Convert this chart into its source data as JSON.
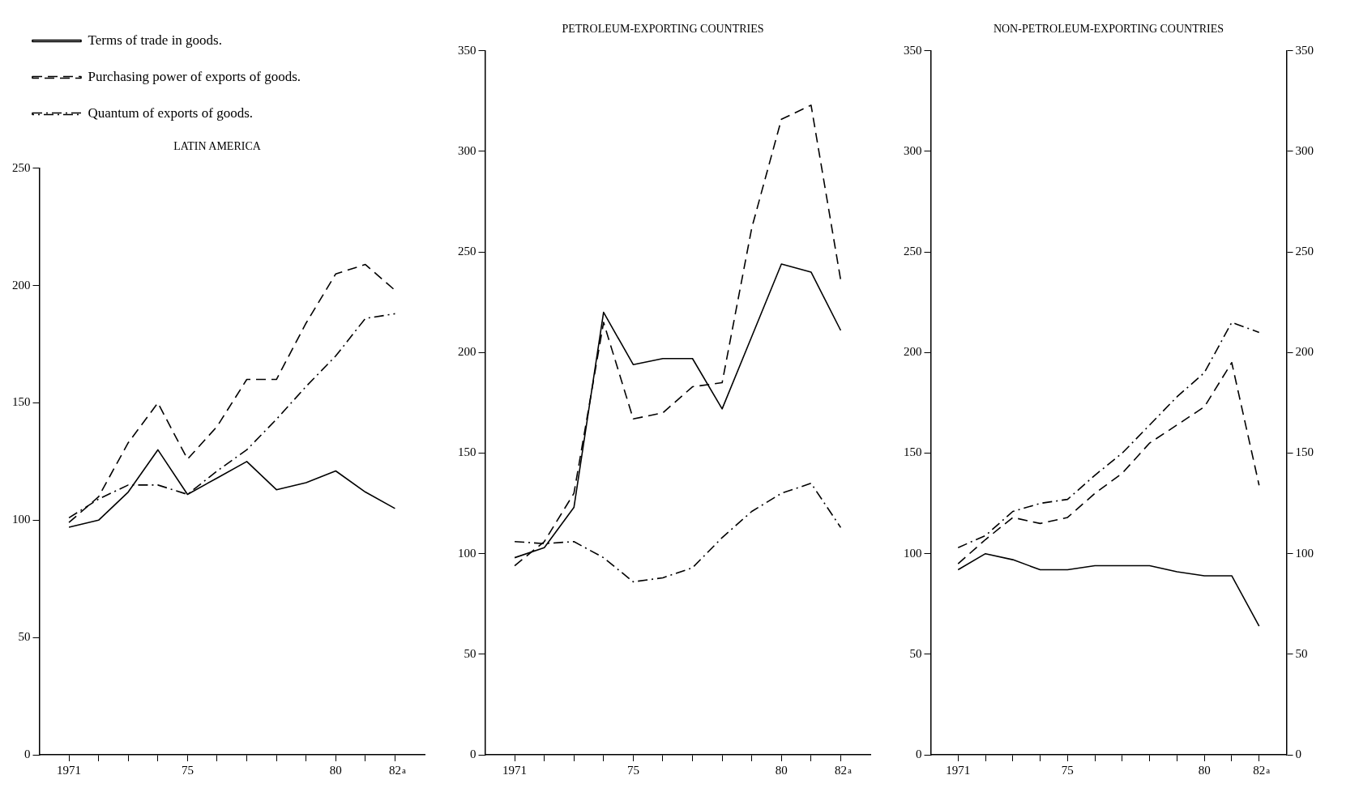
{
  "chart_data": [
    {
      "type": "line",
      "title": "LATIN AMERICA",
      "x": [
        1971,
        1972,
        1973,
        1974,
        1975,
        1976,
        1977,
        1978,
        1979,
        1980,
        1981,
        1982
      ],
      "xlim": [
        1970,
        1983
      ],
      "xticks": [
        {
          "value": 1971,
          "label": "1971"
        },
        {
          "value": 1972,
          "label": null
        },
        {
          "value": 1973,
          "label": null
        },
        {
          "value": 1974,
          "label": null
        },
        {
          "value": 1975,
          "label": "75"
        },
        {
          "value": 1976,
          "label": null
        },
        {
          "value": 1977,
          "label": null
        },
        {
          "value": 1978,
          "label": null
        },
        {
          "value": 1979,
          "label": null
        },
        {
          "value": 1980,
          "label": "80"
        },
        {
          "value": 1981,
          "label": null
        },
        {
          "value": 1982,
          "label": "82"
        }
      ],
      "ylim": [
        0,
        250
      ],
      "yticks": [
        0,
        50,
        100,
        150,
        200,
        250
      ],
      "annotations": [
        "a"
      ],
      "grid": false,
      "marker": "none",
      "legend": "top left",
      "series": [
        {
          "name": "Terms of trade in goods.",
          "color": "#000000",
          "line_style": "solid",
          "values": [
            97,
            100,
            112,
            130,
            111,
            118,
            125,
            113,
            116,
            121,
            112,
            105
          ]
        },
        {
          "name": "Purchasing power of exports of goods.",
          "color": "#000000",
          "line_style": "dashed",
          "values": [
            99,
            110,
            133,
            150,
            126,
            140,
            160,
            160,
            184,
            205,
            209,
            198
          ]
        },
        {
          "name": "Quantum of exports of goods.",
          "color": "#000000",
          "line_style": "dashdot",
          "values": [
            101,
            109,
            115,
            115,
            111,
            121,
            130,
            143,
            157,
            170,
            186,
            188
          ]
        }
      ]
    },
    {
      "type": "line",
      "title": "PETROLEUM-EXPORTING COUNTRIES",
      "x": [
        1971,
        1972,
        1973,
        1974,
        1975,
        1976,
        1977,
        1978,
        1979,
        1980,
        1981,
        1982
      ],
      "xlim": [
        1970,
        1983
      ],
      "xticks": [
        {
          "value": 1971,
          "label": "1971"
        },
        {
          "value": 1972,
          "label": null
        },
        {
          "value": 1973,
          "label": null
        },
        {
          "value": 1974,
          "label": null
        },
        {
          "value": 1975,
          "label": "75"
        },
        {
          "value": 1976,
          "label": null
        },
        {
          "value": 1977,
          "label": null
        },
        {
          "value": 1978,
          "label": null
        },
        {
          "value": 1979,
          "label": null
        },
        {
          "value": 1980,
          "label": "80"
        },
        {
          "value": 1981,
          "label": null
        },
        {
          "value": 1982,
          "label": "82"
        }
      ],
      "ylim": [
        0,
        350
      ],
      "yticks": [
        0,
        50,
        100,
        150,
        200,
        250,
        300,
        350
      ],
      "annotations": [
        "a"
      ],
      "grid": false,
      "marker": "none",
      "series": [
        {
          "color": "#000000",
          "line_style": "solid",
          "values": [
            98,
            103,
            123,
            220,
            194,
            197,
            197,
            172,
            208,
            244,
            240,
            211
          ]
        },
        {
          "color": "#000000",
          "line_style": "dashed",
          "values": [
            94,
            106,
            130,
            215,
            167,
            170,
            183,
            185,
            262,
            316,
            323,
            236
          ]
        },
        {
          "color": "#000000",
          "line_style": "dashdot",
          "values": [
            106,
            105,
            106,
            98,
            86,
            88,
            93,
            108,
            121,
            130,
            135,
            113
          ]
        }
      ]
    },
    {
      "type": "line",
      "title": "NON-PETROLEUM-EXPORTING COUNTRIES",
      "x": [
        1971,
        1972,
        1973,
        1974,
        1975,
        1976,
        1977,
        1978,
        1979,
        1980,
        1981,
        1982
      ],
      "xlim": [
        1970,
        1983
      ],
      "xticks": [
        {
          "value": 1971,
          "label": "1971"
        },
        {
          "value": 1972,
          "label": null
        },
        {
          "value": 1973,
          "label": null
        },
        {
          "value": 1974,
          "label": null
        },
        {
          "value": 1975,
          "label": "75"
        },
        {
          "value": 1976,
          "label": null
        },
        {
          "value": 1977,
          "label": null
        },
        {
          "value": 1978,
          "label": null
        },
        {
          "value": 1979,
          "label": null
        },
        {
          "value": 1980,
          "label": "80"
        },
        {
          "value": 1981,
          "label": null
        },
        {
          "value": 1982,
          "label": "82"
        }
      ],
      "ylim": [
        0,
        350
      ],
      "yticks": [
        0,
        50,
        100,
        150,
        200,
        250,
        300,
        350
      ],
      "annotations": [
        "a"
      ],
      "y2lim": [
        0,
        350
      ],
      "y2ticks": [
        0,
        50,
        100,
        150,
        200,
        250,
        300,
        350
      ],
      "grid": false,
      "marker": "none",
      "series": [
        {
          "color": "#000000",
          "line_style": "solid",
          "values": [
            92,
            100,
            97,
            92,
            92,
            94,
            94,
            94,
            91,
            89,
            89,
            64
          ]
        },
        {
          "color": "#000000",
          "line_style": "dashed",
          "values": [
            95,
            107,
            118,
            115,
            118,
            130,
            140,
            155,
            164,
            173,
            195,
            134
          ]
        },
        {
          "color": "#000000",
          "line_style": "dashdot",
          "values": [
            103,
            109,
            121,
            125,
            127,
            139,
            150,
            164,
            178,
            190,
            215,
            210
          ]
        }
      ]
    }
  ]
}
